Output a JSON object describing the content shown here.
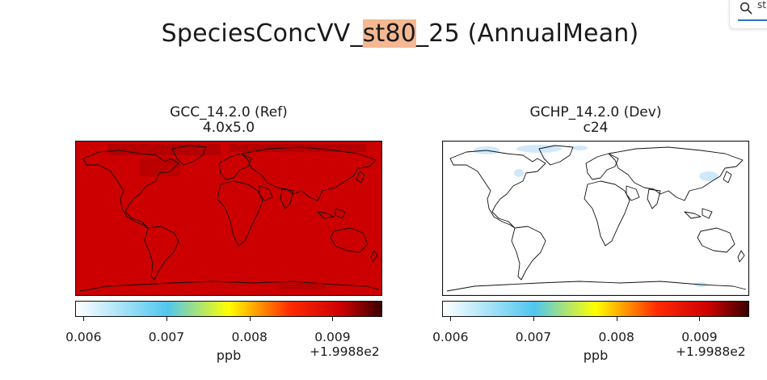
{
  "figure": {
    "title_prefix": "SpeciesConcVV_",
    "title_highlight": "st80",
    "title_suffix": "_25 (AnnualMean)"
  },
  "search": {
    "query": "st",
    "icon": "search-icon"
  },
  "colors": {
    "highlight": "#f4b892",
    "ref_field": "#cc0000",
    "ref_dark_patch": "#b40000",
    "dev_field": "#ffffff",
    "dev_patch": "#cfe9fb"
  },
  "chart_data": [
    {
      "type": "heatmap",
      "title": "GCC_14.2.0 (Ref)",
      "subtitle": "4.0x5.0",
      "colorbar": {
        "ticks": [
          "0.006",
          "0.007",
          "0.008",
          "0.009"
        ],
        "tick_values": [
          0.006,
          0.007,
          0.008,
          0.009
        ],
        "range": [
          0.0059,
          0.0096
        ],
        "offset_label": "+1.9988e2",
        "unit": "ppb",
        "colormap": [
          "#ffffff",
          "#4fc6f0",
          "#ffff00",
          "#ff2a00",
          "#cc0000",
          "#3a0000"
        ]
      },
      "field_summary": "nearly uniform ~0.0091 (dark red), slightly darker over high latitudes"
    },
    {
      "type": "heatmap",
      "title": "GCHP_14.2.0 (Dev)",
      "subtitle": "c24",
      "colorbar": {
        "ticks": [
          "0.006",
          "0.007",
          "0.008",
          "0.009"
        ],
        "tick_values": [
          0.006,
          0.007,
          0.008,
          0.009
        ],
        "range": [
          0.0059,
          0.0096
        ],
        "offset_label": "+1.9988e2",
        "unit": "ppb",
        "colormap": [
          "#ffffff",
          "#4fc6f0",
          "#ffff00",
          "#ff2a00",
          "#cc0000",
          "#3a0000"
        ]
      },
      "field_summary": "nearly uniform ~0.0059 (white) with faint light-blue patches near Greenland and Asia"
    }
  ]
}
